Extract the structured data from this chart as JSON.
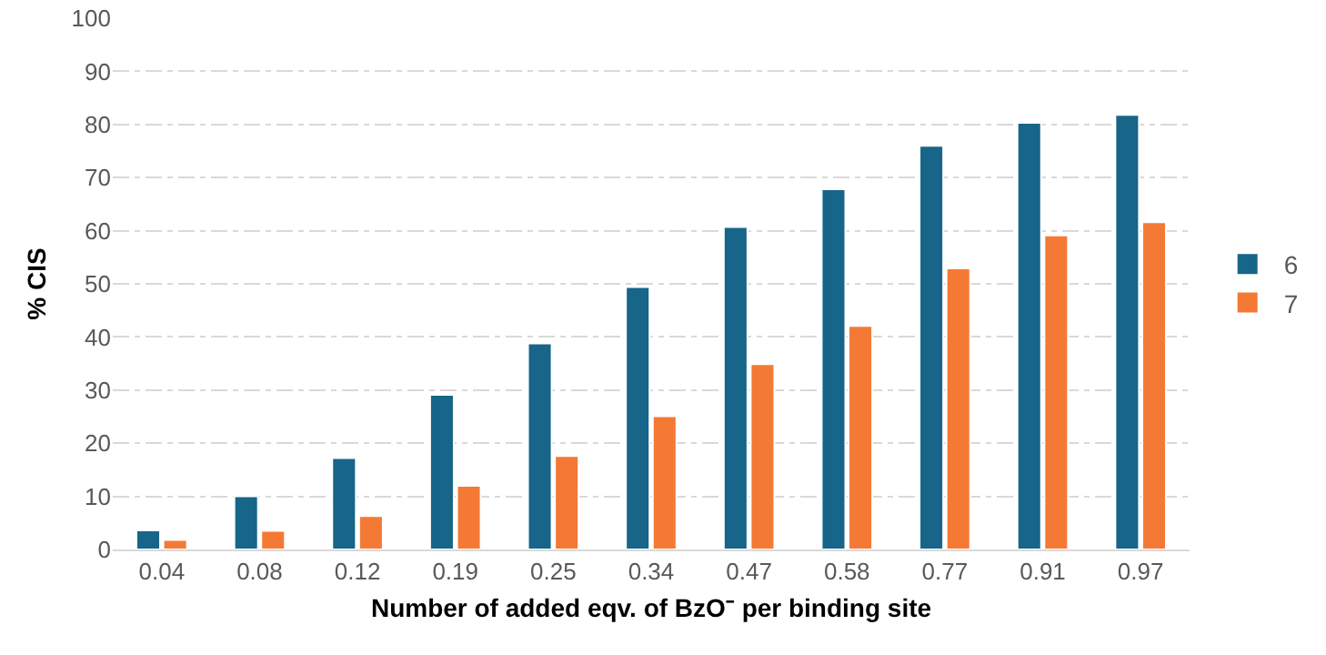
{
  "chart_data": {
    "type": "bar",
    "xlabel": "Number of added eqv. of BzO⁻ per binding site",
    "ylabel": "% CIS",
    "categories": [
      "0.04",
      "0.08",
      "0.12",
      "0.19",
      "0.25",
      "0.34",
      "0.47",
      "0.58",
      "0.77",
      "0.91",
      "0.97"
    ],
    "series": [
      {
        "name": "6",
        "color": "#176588",
        "values": [
          3.6,
          10,
          17.2,
          29.1,
          38.8,
          49.4,
          60.7,
          67.8,
          76,
          80.3,
          81.8
        ]
      },
      {
        "name": "7",
        "color": "#f47935",
        "values": [
          1.8,
          3.5,
          6.3,
          12,
          17.6,
          25.1,
          34.9,
          42.1,
          52.9,
          59.1,
          61.6
        ]
      }
    ],
    "ylim": [
      0,
      100
    ],
    "yticks": [
      0,
      10,
      20,
      30,
      40,
      50,
      60,
      70,
      80,
      90,
      100
    ],
    "grid": "y",
    "legend": "right"
  }
}
